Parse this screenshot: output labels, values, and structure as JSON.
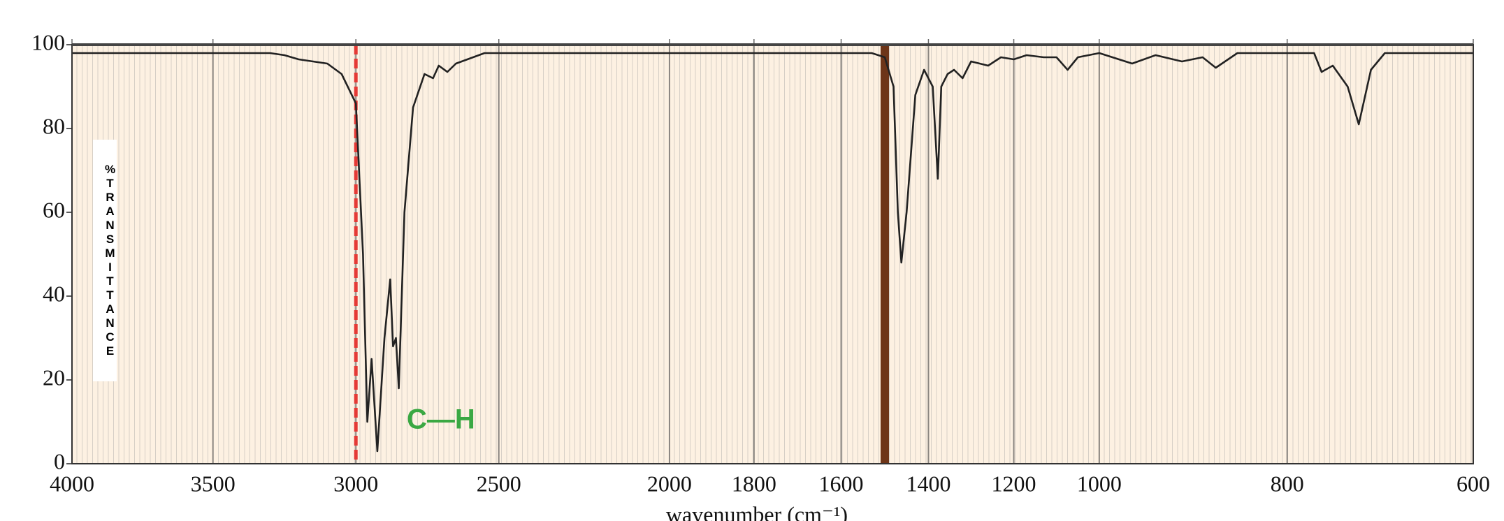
{
  "chart_data": {
    "type": "line",
    "y_label": "%TRANSMITTANCE",
    "x_label": "wavenumber (cm⁻¹)",
    "annotations": [
      "C—H"
    ],
    "annotation_color": "#3aa843",
    "color": "#222222",
    "grid": "vertical",
    "xlim": [
      4000,
      600
    ],
    "xticks": [
      4000,
      3500,
      3000,
      2500,
      2000,
      1800,
      1600,
      1400,
      1200,
      1000,
      800,
      600
    ],
    "ylim": [
      0,
      100
    ],
    "yticks": [
      0,
      20,
      40,
      60,
      80,
      100
    ],
    "vlines": [
      {
        "x": 3000,
        "color": "#e53935",
        "style": "dashed"
      },
      {
        "x": 1500,
        "color": "#6d3518",
        "style": "solid"
      }
    ],
    "x": [
      4000,
      3300,
      3250,
      3200,
      3100,
      3050,
      3000,
      2975,
      2960,
      2945,
      2925,
      2900,
      2880,
      2870,
      2860,
      2850,
      2830,
      2800,
      2760,
      2730,
      2710,
      2680,
      2650,
      2550,
      2000,
      1530,
      1500,
      1480,
      1470,
      1462,
      1450,
      1430,
      1410,
      1390,
      1378,
      1370,
      1355,
      1340,
      1320,
      1300,
      1260,
      1230,
      1200,
      1170,
      1130,
      1100,
      1074,
      1050,
      1000,
      965,
      940,
      912,
      890,
      876,
      853,
      771,
      763,
      751,
      735,
      723,
      710,
      695,
      600
    ],
    "values": [
      98,
      98,
      97.5,
      96.5,
      95.5,
      93,
      86,
      50,
      10,
      25,
      3,
      30,
      44,
      28,
      30,
      18,
      60,
      85,
      93,
      92,
      95,
      93.5,
      95.5,
      98,
      98,
      98,
      97,
      90,
      60,
      48,
      60,
      88,
      94,
      90,
      68,
      90,
      93,
      94,
      92,
      96,
      95,
      97,
      96.5,
      97.5,
      97,
      97,
      94,
      97,
      98,
      95.5,
      97.5,
      96,
      97,
      94.5,
      98,
      98,
      93.5,
      95,
      90,
      81,
      94,
      98,
      98
    ]
  }
}
